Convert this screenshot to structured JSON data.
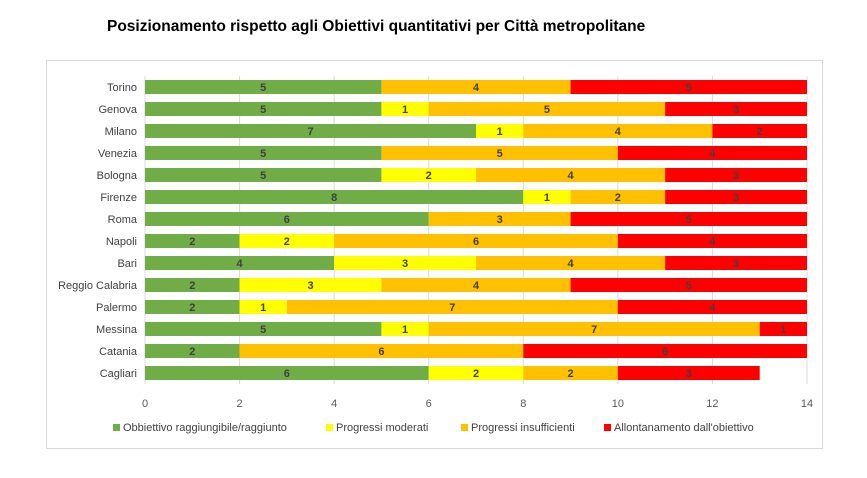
{
  "title": "Posizionamento rispetto agli Obiettivi quantitativi per Città metropolitane",
  "chart_data": {
    "type": "bar",
    "orientation": "horizontal",
    "stacked": true,
    "title": "Posizionamento rispetto agli Obiettivi quantitativi per Città metropolitane",
    "categories": [
      "Torino",
      "Genova",
      "Milano",
      "Venezia",
      "Bologna",
      "Firenze",
      "Roma",
      "Napoli",
      "Bari",
      "Reggio Calabria",
      "Palermo",
      "Messina",
      "Catania",
      "Cagliari"
    ],
    "series": [
      {
        "name": "Obbiettivo raggiungibile/raggiunto",
        "color": "#70ad47",
        "values": [
          5,
          5,
          7,
          5,
          5,
          8,
          6,
          2,
          4,
          2,
          2,
          5,
          2,
          6
        ]
      },
      {
        "name": "Progressi moderati",
        "color": "#ffff00",
        "values": [
          0,
          1,
          1,
          0,
          2,
          1,
          0,
          2,
          3,
          3,
          1,
          1,
          0,
          2
        ]
      },
      {
        "name": "Progressi insufficienti",
        "color": "#ffc000",
        "values": [
          4,
          5,
          4,
          5,
          4,
          2,
          3,
          6,
          4,
          4,
          7,
          7,
          6,
          2
        ]
      },
      {
        "name": "Allontanamento dall'obiettivo",
        "color": "#ff0000",
        "values": [
          5,
          3,
          2,
          4,
          3,
          3,
          5,
          4,
          3,
          5,
          4,
          1,
          6,
          3
        ]
      }
    ],
    "xlim": [
      0,
      14
    ],
    "xticks": [
      0,
      2,
      4,
      6,
      8,
      10,
      12,
      14
    ],
    "grid": true,
    "legend": "bottom"
  }
}
